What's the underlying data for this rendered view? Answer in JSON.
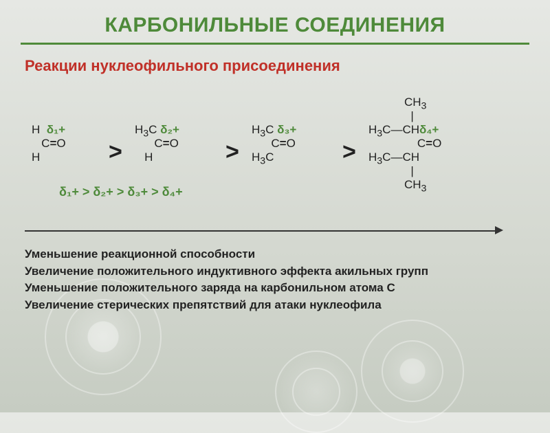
{
  "title": "КАРБОНИЛЬНЫЕ СОЕДИНЕНИЯ",
  "subtitle": "Реакции нуклеофильного присоединения",
  "gt": ">",
  "order_line": "δ₁+  >  δ₂+  >  δ₃+  >  δ₄+",
  "delta1": "δ₁+",
  "delta2": "δ₂+",
  "delta3": "δ₃+",
  "delta4": "δ₄+",
  "CO": "C=O",
  "H": "H",
  "H3C": "H₃C",
  "CH3": "CH₃",
  "CH": "CH",
  "explain_lines": [
    "Уменьшение реакционной способности",
    "Увеличение положительного индуктивного эффекта акильных групп",
    "Уменьшение положительного заряда на карбонильном атома С",
    "Увеличение стерических препятствий для атаки нуклеофила"
  ],
  "colors": {
    "green": "#4e8a3a",
    "red": "#c03028",
    "text": "#222222"
  }
}
